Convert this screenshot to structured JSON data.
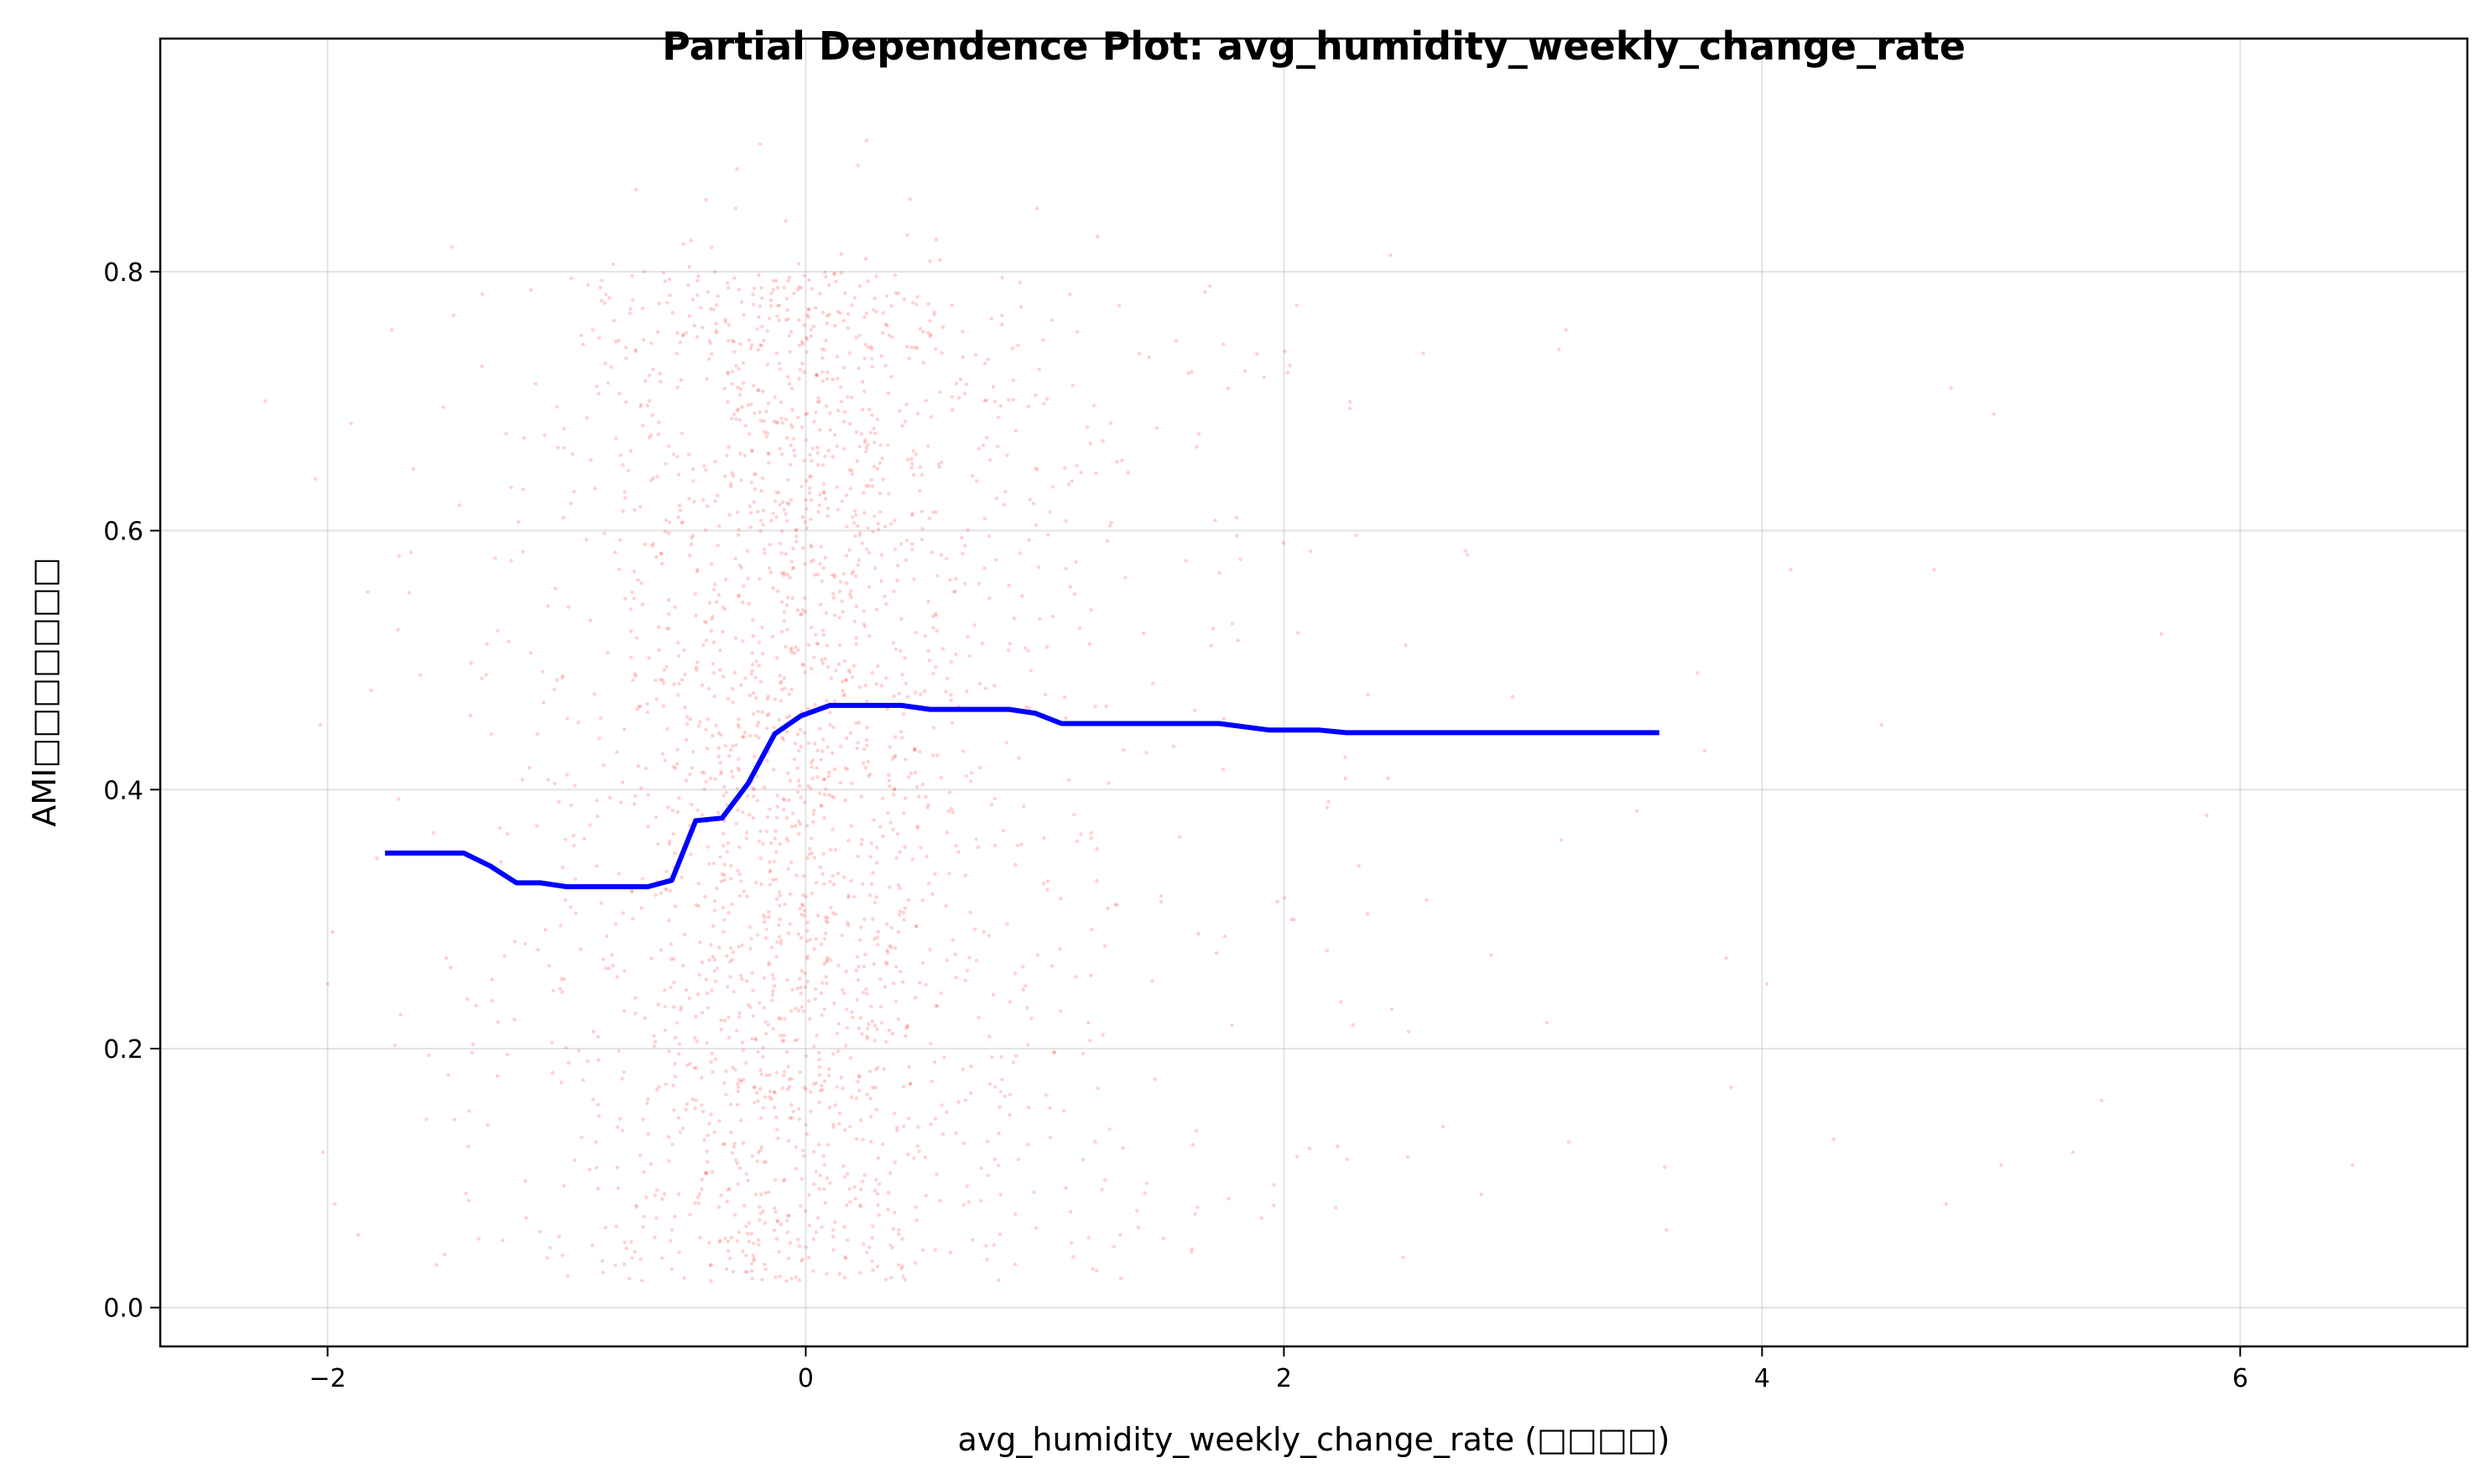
{
  "chart_data": {
    "type": "line",
    "title": "Partial Dependence Plot: avg_humidity_weekly_change_rate",
    "xlabel": "avg_humidity_weekly_change_rate (□□□□)",
    "ylabel": "AMI□□□□□□□",
    "xlim": [
      -2.7,
      6.95
    ],
    "ylim": [
      -0.03,
      0.98
    ],
    "xticks": [
      -2,
      0,
      2,
      4,
      6
    ],
    "xtick_labels": [
      "−2",
      "0",
      "2",
      "4",
      "6"
    ],
    "yticks": [
      0.0,
      0.2,
      0.4,
      0.6,
      0.8
    ],
    "ytick_labels": [
      "0.0",
      "0.2",
      "0.4",
      "0.6",
      "0.8"
    ],
    "grid": true,
    "legend": "none",
    "series": [
      {
        "kind": "line",
        "color": "#0000ff",
        "x": [
          -1.76,
          -1.43,
          -1.32,
          -1.21,
          -1.11,
          -1.0,
          -0.89,
          -0.66,
          -0.56,
          -0.46,
          -0.35,
          -0.24,
          -0.13,
          -0.02,
          0.1,
          0.4,
          0.52,
          0.85,
          0.96,
          1.07,
          1.2,
          1.3,
          1.73,
          1.94,
          2.15,
          2.26,
          2.6,
          3.57
        ],
        "y": [
          0.351,
          0.351,
          0.341,
          0.328,
          0.328,
          0.325,
          0.325,
          0.325,
          0.33,
          0.376,
          0.378,
          0.405,
          0.443,
          0.457,
          0.465,
          0.465,
          0.462,
          0.462,
          0.459,
          0.451,
          0.451,
          0.451,
          0.451,
          0.446,
          0.446,
          0.444,
          0.444,
          0.444
        ]
      },
      {
        "kind": "scatter",
        "color": "#ff0000",
        "opacity": 0.18,
        "description_points": "dense cloud of observations, most between x=-1 and x=1, y spanning 0.02 to 0.93",
        "outliers": [
          [
            -2.26,
            0.7
          ],
          [
            -2.05,
            0.64
          ],
          [
            -2.03,
            0.45
          ],
          [
            -2.02,
            0.12
          ],
          [
            -1.98,
            0.29
          ],
          [
            -2.0,
            0.25
          ],
          [
            -1.97,
            0.08
          ],
          [
            4.02,
            0.25
          ],
          [
            4.12,
            0.57
          ],
          [
            4.3,
            0.13
          ],
          [
            4.5,
            0.45
          ],
          [
            4.72,
            0.57
          ],
          [
            4.77,
            0.08
          ],
          [
            5.0,
            0.11
          ],
          [
            5.3,
            0.12
          ],
          [
            5.42,
            0.16
          ],
          [
            5.67,
            0.52
          ],
          [
            5.86,
            0.38
          ],
          [
            6.47,
            0.11
          ],
          [
            4.79,
            0.71
          ],
          [
            4.97,
            0.69
          ],
          [
            3.85,
            0.27
          ],
          [
            3.87,
            0.17
          ],
          [
            3.73,
            0.49
          ],
          [
            3.76,
            0.43
          ],
          [
            3.6,
            0.06
          ],
          [
            3.15,
            0.74
          ],
          [
            3.1,
            0.22
          ]
        ]
      }
    ]
  }
}
